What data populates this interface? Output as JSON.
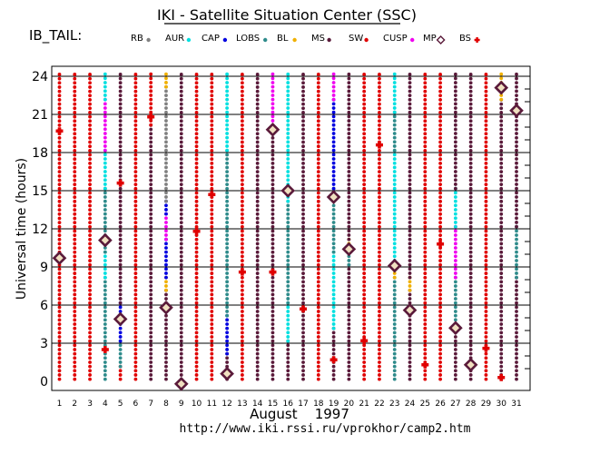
{
  "chart_data": {
    "type": "scatter",
    "title": "IKI - Satellite Situation Center (SSC)",
    "subtitle": "IB_TAIL:",
    "ylabel": "Universal time (hours)",
    "xlabel": "August    1997",
    "footer": "http://www.iki.rssi.ru/vprokhor/camp2.htm",
    "x": [
      1,
      2,
      3,
      4,
      5,
      6,
      7,
      8,
      9,
      10,
      11,
      12,
      13,
      14,
      15,
      16,
      17,
      18,
      19,
      20,
      21,
      22,
      23,
      24,
      25,
      26,
      27,
      28,
      29,
      30,
      31
    ],
    "y_ticks": [
      0,
      3,
      6,
      9,
      12,
      15,
      18,
      21,
      24
    ],
    "ylim": [
      0,
      24
    ],
    "xlim": [
      1,
      31
    ],
    "grid": true,
    "legend_position": "top",
    "legend": [
      {
        "name": "RB",
        "color": "#808080",
        "marker": "dot"
      },
      {
        "name": "AUR",
        "color": "#00e0e0",
        "marker": "dot"
      },
      {
        "name": "CAP",
        "color": "#0000e0",
        "marker": "dot"
      },
      {
        "name": "LOBS",
        "color": "#2e8b8b",
        "marker": "dot"
      },
      {
        "name": "BL",
        "color": "#f0b000",
        "marker": "dot"
      },
      {
        "name": "MS",
        "color": "#5a1a3a",
        "marker": "dot"
      },
      {
        "name": "SW",
        "color": "#e00000",
        "marker": "dot"
      },
      {
        "name": "CUSP",
        "color": "#f000f0",
        "marker": "dot"
      },
      {
        "name": "MP",
        "color": "#5a1a3a",
        "marker": "diamond"
      },
      {
        "name": "BS",
        "color": "#e00000",
        "marker": "cross"
      }
    ],
    "days": [
      {
        "day": 1,
        "segments": [
          [
            "SW",
            0,
            24
          ]
        ],
        "bs": 19.7,
        "mp": 9.7
      },
      {
        "day": 2,
        "segments": [
          [
            "SW",
            0,
            24
          ]
        ]
      },
      {
        "day": 3,
        "segments": [
          [
            "SW",
            0,
            24
          ]
        ]
      },
      {
        "day": 4,
        "segments": [
          [
            "LOBS",
            0,
            8
          ],
          [
            "AUR",
            8,
            10
          ],
          [
            "LOBS",
            10,
            15
          ],
          [
            "AUR",
            15,
            18
          ],
          [
            "CUSP",
            18,
            22
          ],
          [
            "AUR",
            22,
            24
          ]
        ],
        "bs": 2.5,
        "mp": 11.1
      },
      {
        "day": 5,
        "segments": [
          [
            "SW",
            0,
            1
          ],
          [
            "LOBS",
            1,
            3
          ],
          [
            "CAP",
            3,
            6
          ],
          [
            "MS",
            6,
            24
          ]
        ],
        "bs": 15.6,
        "mp": 4.9
      },
      {
        "day": 6,
        "segments": [
          [
            "SW",
            0,
            24
          ]
        ]
      },
      {
        "day": 7,
        "segments": [
          [
            "MS",
            0,
            20
          ],
          [
            "SW",
            20,
            24
          ]
        ],
        "bs": 20.8
      },
      {
        "day": 8,
        "segments": [
          [
            "MS",
            0,
            7
          ],
          [
            "BL",
            7,
            8
          ],
          [
            "CAP",
            8,
            11
          ],
          [
            "CUSP",
            11,
            13
          ],
          [
            "CAP",
            13,
            14
          ],
          [
            "RB",
            14,
            23
          ],
          [
            "BL",
            23,
            24
          ]
        ],
        "mp": 5.8
      },
      {
        "day": 9,
        "segments": [
          [
            "MS",
            0,
            24
          ]
        ],
        "mp": -0.2
      },
      {
        "day": 10,
        "segments": [
          [
            "SW",
            0,
            24
          ]
        ],
        "bs": 11.8
      },
      {
        "day": 11,
        "segments": [
          [
            "SW",
            0,
            24
          ]
        ],
        "bs": 14.7
      },
      {
        "day": 12,
        "segments": [
          [
            "MS",
            0,
            2
          ],
          [
            "CAP",
            2,
            5
          ],
          [
            "LOBS",
            5,
            18
          ],
          [
            "AUR",
            18,
            24
          ]
        ],
        "mp": 0.6
      },
      {
        "day": 13,
        "segments": [
          [
            "SW",
            0,
            24
          ]
        ],
        "bs": 8.6
      },
      {
        "day": 14,
        "segments": [
          [
            "MS",
            0,
            24
          ]
        ]
      },
      {
        "day": 15,
        "segments": [
          [
            "MS",
            0,
            20
          ],
          [
            "CUSP",
            20,
            24
          ]
        ],
        "bs": 8.6,
        "mp": 19.8
      },
      {
        "day": 16,
        "segments": [
          [
            "MS",
            0,
            3
          ],
          [
            "AUR",
            3,
            6
          ],
          [
            "LOBS",
            6,
            14
          ],
          [
            "AUR",
            14,
            24
          ]
        ],
        "mp": 15.0
      },
      {
        "day": 17,
        "segments": [
          [
            "MS",
            0,
            24
          ]
        ],
        "bs": 5.7
      },
      {
        "day": 18,
        "segments": [
          [
            "SW",
            0,
            24
          ]
        ]
      },
      {
        "day": 19,
        "segments": [
          [
            "MS",
            0,
            4
          ],
          [
            "AUR",
            4,
            10
          ],
          [
            "LOBS",
            10,
            15
          ],
          [
            "CAP",
            15,
            22
          ],
          [
            "CUSP",
            22,
            24
          ]
        ],
        "bs": 1.7,
        "mp": 14.5
      },
      {
        "day": 20,
        "segments": [
          [
            "MS",
            0,
            9
          ],
          [
            "LOBS",
            9,
            10
          ],
          [
            "BL",
            10,
            11
          ],
          [
            "MS",
            11,
            24
          ]
        ],
        "mp": 10.4
      },
      {
        "day": 21,
        "segments": [
          [
            "SW",
            0,
            24
          ]
        ],
        "bs": 3.2
      },
      {
        "day": 22,
        "segments": [
          [
            "SW",
            0,
            24
          ]
        ],
        "bs": 18.6
      },
      {
        "day": 23,
        "segments": [
          [
            "LOBS",
            0,
            8
          ],
          [
            "BL",
            8,
            9
          ],
          [
            "AUR",
            9,
            18
          ],
          [
            "LOBS",
            18,
            21
          ],
          [
            "AUR",
            21,
            24
          ]
        ],
        "mp": 9.1
      },
      {
        "day": 24,
        "segments": [
          [
            "MS",
            0,
            7
          ],
          [
            "BL",
            7,
            8
          ],
          [
            "MS",
            8,
            24
          ]
        ],
        "mp": 5.6
      },
      {
        "day": 25,
        "segments": [
          [
            "SW",
            0,
            24
          ]
        ],
        "bs": 1.3
      },
      {
        "day": 26,
        "segments": [
          [
            "SW",
            0,
            24
          ]
        ],
        "bs": 10.8
      },
      {
        "day": 27,
        "segments": [
          [
            "MS",
            0,
            4
          ],
          [
            "LOBS",
            4,
            8
          ],
          [
            "CUSP",
            8,
            12
          ],
          [
            "AUR",
            12,
            15
          ],
          [
            "MS",
            15,
            24
          ]
        ],
        "mp": 4.2
      },
      {
        "day": 28,
        "segments": [
          [
            "MS",
            0,
            24
          ]
        ],
        "mp": 1.3
      },
      {
        "day": 29,
        "segments": [
          [
            "SW",
            0,
            24
          ]
        ],
        "bs": 2.6
      },
      {
        "day": 30,
        "segments": [
          [
            "MS",
            0,
            22
          ],
          [
            "BL",
            22,
            24
          ]
        ],
        "bs": 0.3,
        "mp": 23.1
      },
      {
        "day": 31,
        "segments": [
          [
            "MS",
            0,
            8
          ],
          [
            "LOBS",
            8,
            12
          ],
          [
            "MS",
            12,
            24
          ]
        ],
        "mp": 21.3
      }
    ]
  }
}
